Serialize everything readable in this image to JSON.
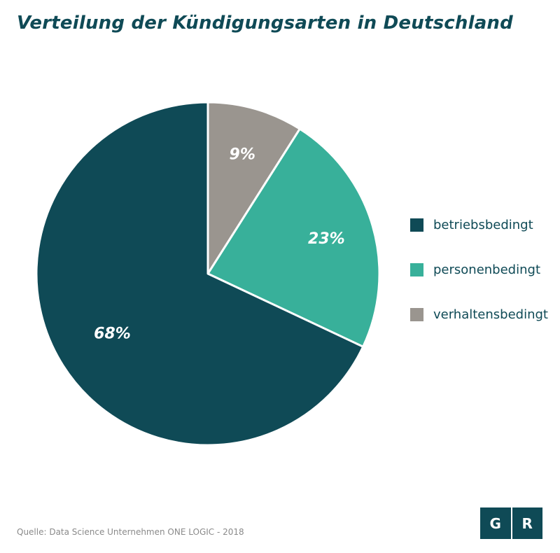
{
  "chart_data": {
    "type": "pie",
    "title": "Verteilung der Kündigungsarten in Deutschland",
    "slices": [
      {
        "label": "betriebsbedingt",
        "value": 68,
        "value_label": "68%",
        "color": "#0f4a56"
      },
      {
        "label": "personenbedingt",
        "value": 23,
        "value_label": "23%",
        "color": "#38b09a"
      },
      {
        "label": "verhaltensbedingt",
        "value": 9,
        "value_label": "9%",
        "color": "#9a958f"
      }
    ],
    "legend_position": "right",
    "start_angle": "12 o'clock, clockwise from verhaltensbedingt"
  },
  "source": "Quelle: Data Science Unternehmen ONE LOGIC - 2018",
  "logo": {
    "left": "G",
    "right": "R",
    "color": "#0f4a56"
  }
}
